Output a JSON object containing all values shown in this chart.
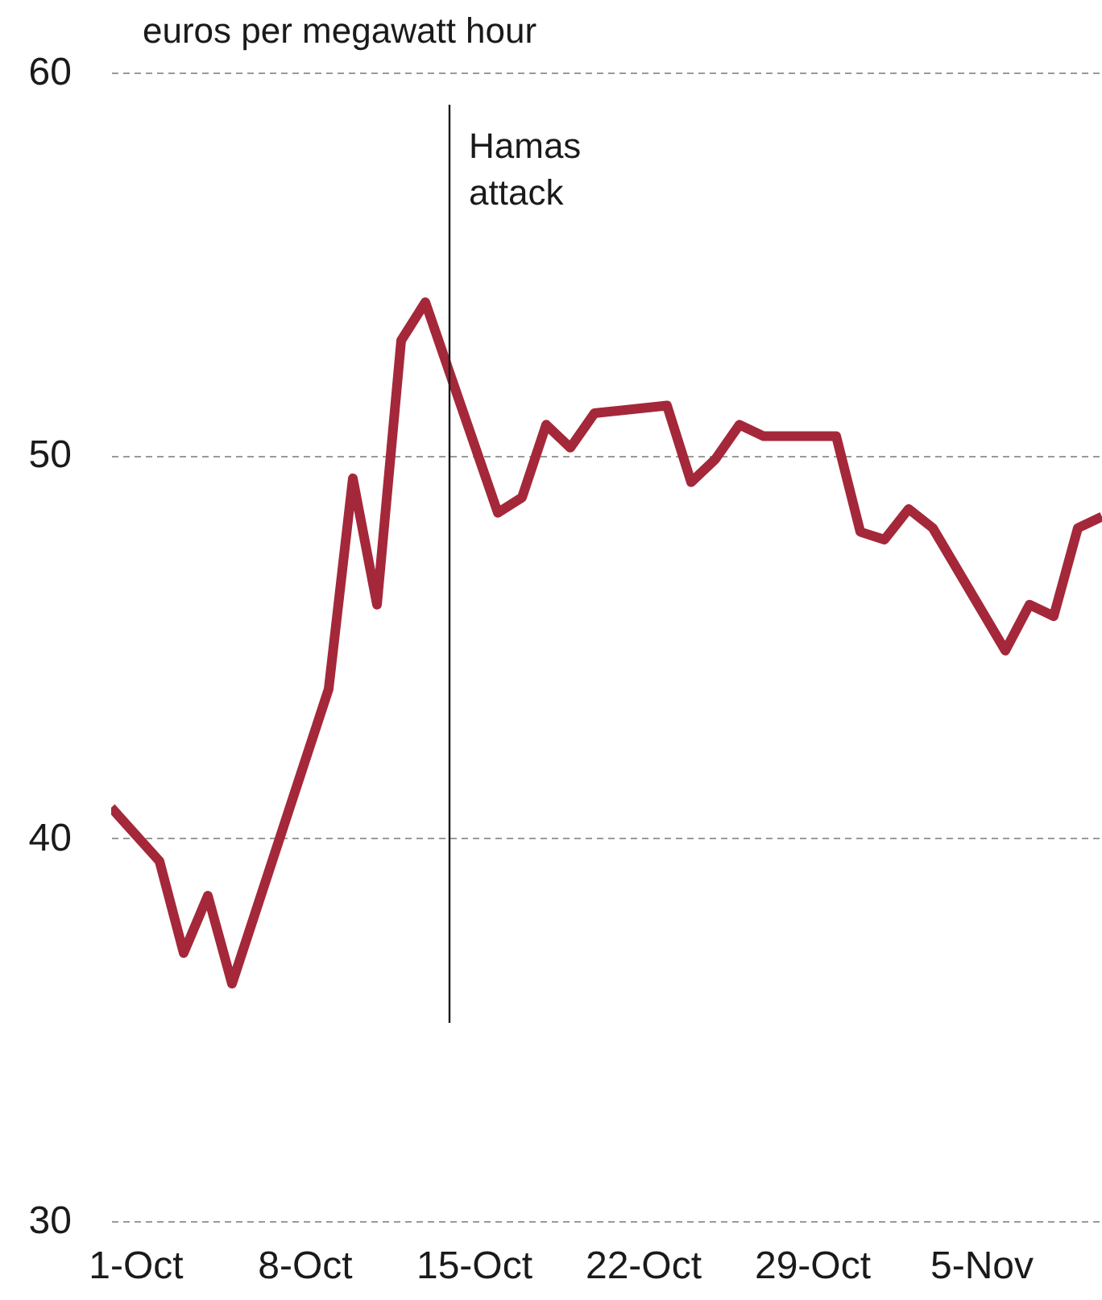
{
  "chart_data": {
    "type": "line",
    "ylabel": "euros per megawatt hour",
    "x": [
      "--09-30",
      "--10-02",
      "--10-03",
      "--10-04",
      "--10-05",
      "--10-09",
      "--10-10",
      "--10-11",
      "--10-12",
      "--10-13",
      "--10-16",
      "--10-17",
      "--10-18",
      "--10-19",
      "--10-20",
      "--10-23",
      "--10-24",
      "--10-25",
      "--10-26",
      "--10-27",
      "--10-30",
      "--10-31",
      "--11-01",
      "--11-02",
      "--11-03",
      "--11-06",
      "--11-07",
      "--11-08",
      "--11-09",
      "--11-10"
    ],
    "series": [
      {
        "color": "#a4283a",
        "values": [
          40.8,
          39.4,
          37.0,
          38.5,
          36.2,
          43.9,
          49.4,
          46.1,
          53.0,
          54.0,
          48.5,
          48.9,
          50.8,
          50.2,
          51.1,
          51.3,
          49.3,
          49.9,
          50.8,
          50.5,
          50.5,
          48.0,
          47.8,
          48.6,
          48.1,
          44.9,
          46.1,
          45.8,
          48.1,
          48.4
        ]
      }
    ],
    "xlim": [
      "--09-30",
      "--11-10"
    ],
    "xticks": [
      {
        "value": "--10-01",
        "label": "1-Oct"
      },
      {
        "value": "--10-08",
        "label": "8-Oct"
      },
      {
        "value": "--10-15",
        "label": "15-Oct"
      },
      {
        "value": "--10-22",
        "label": "22-Oct"
      },
      {
        "value": "--10-29",
        "label": "29-Oct"
      },
      {
        "value": "--11-05",
        "label": "5-Nov"
      }
    ],
    "ylim": [
      30,
      60
    ],
    "yticks": [
      30,
      40,
      50,
      60
    ],
    "grid": "y",
    "ref_lines": [
      {
        "axis": "x",
        "value": "--10-14",
        "label": "Hamas attack",
        "color": "#1a1a1a"
      }
    ]
  }
}
